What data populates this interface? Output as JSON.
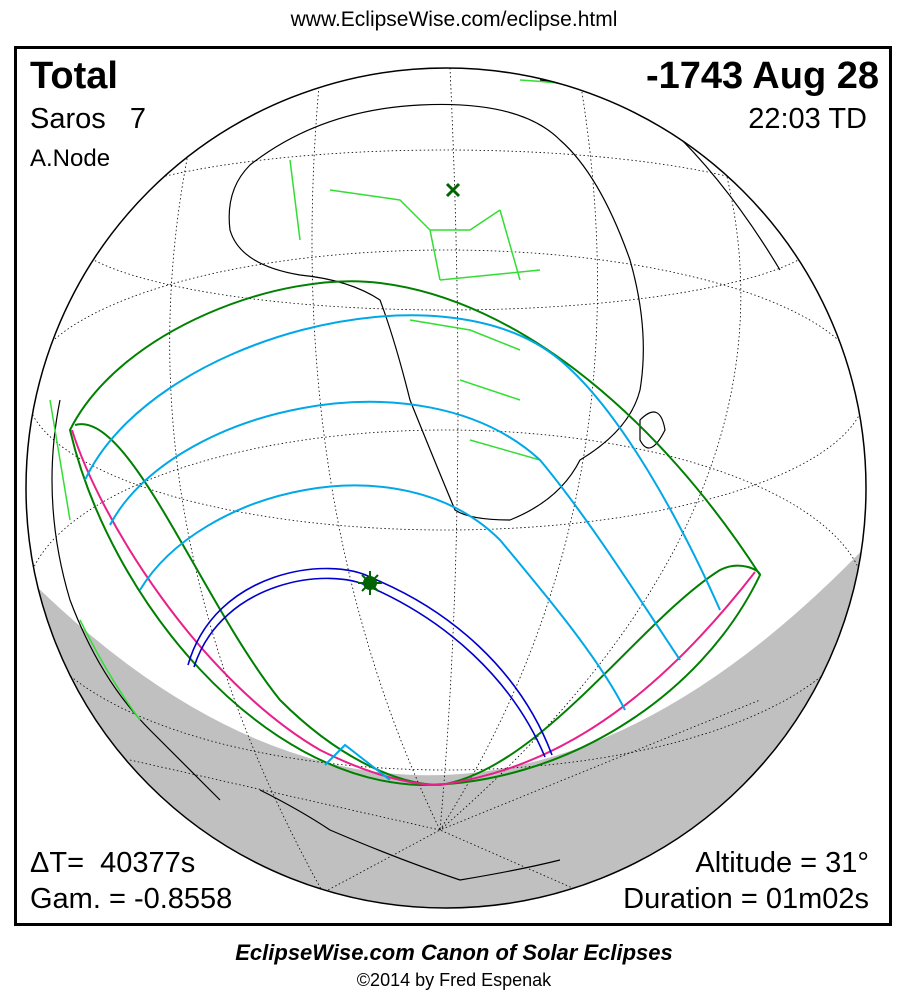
{
  "header": {
    "url": "www.EclipseWise.com/eclipse.html"
  },
  "info": {
    "type": "Total",
    "date": "-1743 Aug 28",
    "saros": "Saros   7",
    "time": "22:03 TD",
    "node": "A.Node",
    "delta_t": "ΔT=  40377s",
    "gamma": "Gam. = -0.8558",
    "altitude": "Altitude = 31°",
    "duration": "Duration = 01m02s"
  },
  "footer": {
    "title": "EclipseWise.com Canon of Solar Eclipses",
    "copyright": "©2014 by Fred Espenak"
  },
  "colors": {
    "penumbra_limits": "#008000",
    "borders": "#33dd33",
    "central_path": "#0000cc",
    "magnitude_lines": "#00a8e8",
    "rise_set": "#e8208a",
    "night": "#c0c0c0"
  },
  "markers": {
    "greatest_eclipse": "star-icon",
    "subsolar_point": "x-icon"
  }
}
